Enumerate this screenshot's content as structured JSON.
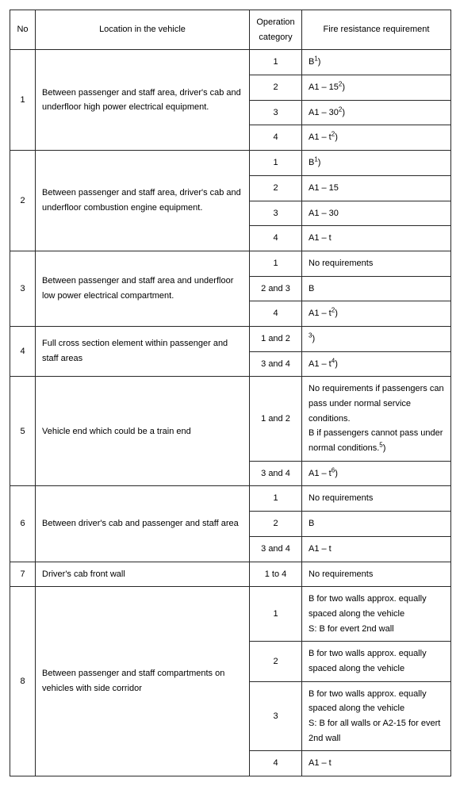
{
  "header": {
    "no": "No",
    "location": "Location in the vehicle",
    "op": "Operation category",
    "req": "Fire resistance requirement"
  },
  "rows": [
    {
      "no": "1",
      "loc": "Between passenger and staff area, driver's cab and underfloor high power electrical equipment.",
      "entries": [
        {
          "op": "1",
          "req_html": "B<sup>1</sup>)"
        },
        {
          "op": "2",
          "req_html": "A1 – 15<sup>2</sup>)"
        },
        {
          "op": "3",
          "req_html": "A1 – 30<sup>2</sup>)"
        },
        {
          "op": "4",
          "req_html": "A1 – t<sup>2</sup>)"
        }
      ]
    },
    {
      "no": "2",
      "loc": "Between passenger and staff area, driver's cab and underfloor combustion engine equipment.",
      "entries": [
        {
          "op": "1",
          "req_html": "B<sup>1</sup>)"
        },
        {
          "op": "2",
          "req_html": "A1 – 15"
        },
        {
          "op": "3",
          "req_html": "A1 – 30"
        },
        {
          "op": "4",
          "req_html": "A1 – t"
        }
      ]
    },
    {
      "no": "3",
      "loc": "Between passenger and staff area and underfloor low power electrical compartment.",
      "entries": [
        {
          "op": "1",
          "req_html": "No requirements"
        },
        {
          "op": "2 and 3",
          "req_html": "B"
        },
        {
          "op": "4",
          "req_html": "A1 – t<sup>2</sup>)"
        }
      ]
    },
    {
      "no": "4",
      "loc": "Full cross section element within passenger and staff areas",
      "entries": [
        {
          "op": "1 and 2",
          "req_html": "<sup>3</sup>)"
        },
        {
          "op": "3 and 4",
          "req_html": "A1 – t<sup>4</sup>)"
        }
      ]
    },
    {
      "no": "5",
      "loc": "Vehicle end which could be a train end",
      "entries": [
        {
          "op": "1 and 2",
          "req_html": "No requirements if passengers can pass under normal service conditions.<br>B if passengers cannot pass under normal conditions.<sup>5</sup>)"
        },
        {
          "op": "3 and 4",
          "req_html": "A1 – t<sup>6</sup>)"
        }
      ]
    },
    {
      "no": "6",
      "loc": "Between driver's cab and passenger and staff area",
      "entries": [
        {
          "op": "1",
          "req_html": "No requirements"
        },
        {
          "op": "2",
          "req_html": "B"
        },
        {
          "op": "3 and 4",
          "req_html": "A1 – t"
        }
      ]
    },
    {
      "no": "7",
      "loc": "Driver's cab front wall",
      "entries": [
        {
          "op": "1 to 4",
          "req_html": "No requirements"
        }
      ]
    },
    {
      "no": "8",
      "loc": "Between passenger and staff compartments on vehicles with side corridor",
      "entries": [
        {
          "op": "1",
          "req_html": "B for two walls approx. equally spaced along the vehicle<br>S: B for evert 2nd wall"
        },
        {
          "op": "2",
          "req_html": "B for two walls approx. equally spaced along the vehicle"
        },
        {
          "op": "3",
          "req_html": "B for two walls approx. equally spaced along the vehicle<br>S: B for all walls or A2-15 for evert 2nd wall"
        },
        {
          "op": "4",
          "req_html": "A1 – t"
        }
      ]
    }
  ]
}
